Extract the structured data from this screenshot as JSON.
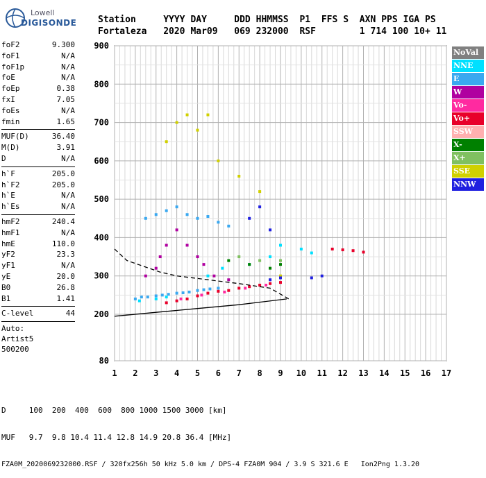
{
  "logo": {
    "line1": "Lowell",
    "line2": "DIGISONDE"
  },
  "header": {
    "labels": [
      "Station",
      "YYYY",
      "DAY",
      "DDD",
      "HHMMSS",
      "P1",
      "FFS",
      "S",
      "AXN",
      "PPS",
      "IGA",
      "PS"
    ],
    "values": [
      "Fortaleza",
      "2020",
      "Mar09",
      "069",
      "232000",
      "RSF",
      "1",
      "714",
      "100",
      "10+",
      "11"
    ]
  },
  "params": {
    "groups": [
      [
        {
          "k": "foF2",
          "v": "9.300"
        },
        {
          "k": "foF1",
          "v": "N/A"
        },
        {
          "k": "foF1p",
          "v": "N/A"
        },
        {
          "k": "foE",
          "v": "N/A"
        },
        {
          "k": "foEp",
          "v": "0.38"
        },
        {
          "k": "fxI",
          "v": "7.05"
        },
        {
          "k": "foEs",
          "v": "N/A"
        },
        {
          "k": "fmin",
          "v": "1.65"
        }
      ],
      [
        {
          "k": "MUF(D)",
          "v": "36.40"
        },
        {
          "k": "M(D)",
          "v": "3.91"
        },
        {
          "k": "D",
          "v": "N/A"
        }
      ],
      [
        {
          "k": "h`F",
          "v": "205.0"
        },
        {
          "k": "h`F2",
          "v": "205.0"
        },
        {
          "k": "h`E",
          "v": "N/A"
        },
        {
          "k": "h`Es",
          "v": "N/A"
        }
      ],
      [
        {
          "k": "hmF2",
          "v": "240.4"
        },
        {
          "k": "hmF1",
          "v": "N/A"
        },
        {
          "k": "hmE",
          "v": "110.0"
        },
        {
          "k": "yF2",
          "v": "23.3"
        },
        {
          "k": "yF1",
          "v": "N/A"
        },
        {
          "k": "yE",
          "v": "20.0"
        },
        {
          "k": "B0",
          "v": "26.8"
        },
        {
          "k": "B1",
          "v": "1.41"
        }
      ],
      [
        {
          "k": "C-level",
          "v": "44"
        }
      ]
    ],
    "auto": [
      "Auto:",
      "Artist5",
      "500200"
    ]
  },
  "legend": [
    {
      "label": "NoVal",
      "color": "#808080"
    },
    {
      "label": "NNE",
      "color": "#00e0ff"
    },
    {
      "label": "E",
      "color": "#3aa8f0"
    },
    {
      "label": "W",
      "color": "#b000a0"
    },
    {
      "label": "Vo-",
      "color": "#ff2aa0"
    },
    {
      "label": "Vo+",
      "color": "#e8002a"
    },
    {
      "label": "SSW",
      "color": "#ffb0b0"
    },
    {
      "label": "X-",
      "color": "#008000"
    },
    {
      "label": "X+",
      "color": "#80c060"
    },
    {
      "label": "SSE",
      "color": "#d0d000"
    },
    {
      "label": "NNW",
      "color": "#2020e0"
    }
  ],
  "footer": {
    "line1": "D     100  200  400  600  800 1000 1500 3000 [km]",
    "line2": "MUF   9.7  9.8 10.4 11.4 12.8 14.9 20.8 36.4 [MHz]",
    "line3": "FZA0M_2020069232000.RSF / 320fx256h 50 kHz 5.0 km / DPS-4 FZA0M 904 / 3.9 S 321.6 E   Ion2Png 1.3.20"
  },
  "chart_data": {
    "type": "scatter",
    "title": "",
    "xlabel": "",
    "ylabel": "",
    "xlim": [
      1,
      17
    ],
    "ylim": [
      80,
      900
    ],
    "x_ticks": [
      1,
      2,
      3,
      4,
      5,
      6,
      7,
      8,
      9,
      10,
      11,
      12,
      13,
      14,
      15,
      16,
      17
    ],
    "y_ticks": [
      80,
      200,
      300,
      400,
      500,
      600,
      700,
      800,
      900
    ],
    "grid": true,
    "legend_position": "right",
    "series": [
      {
        "name": "E",
        "color": "#3aa8f0",
        "points": [
          [
            2.0,
            240
          ],
          [
            2.3,
            245
          ],
          [
            2.6,
            245
          ],
          [
            3.0,
            248
          ],
          [
            3.3,
            250
          ],
          [
            3.6,
            252
          ],
          [
            4.0,
            255
          ],
          [
            4.3,
            256
          ],
          [
            4.6,
            258
          ],
          [
            5.0,
            262
          ],
          [
            5.3,
            264
          ],
          [
            5.6,
            266
          ],
          [
            6.0,
            268
          ],
          [
            2.5,
            450
          ],
          [
            3.0,
            460
          ],
          [
            3.5,
            470
          ],
          [
            4.0,
            480
          ],
          [
            4.5,
            460
          ],
          [
            5.0,
            450
          ],
          [
            5.5,
            455
          ],
          [
            6.0,
            440
          ],
          [
            6.5,
            430
          ]
        ]
      },
      {
        "name": "NNE",
        "color": "#00e0ff",
        "points": [
          [
            2.2,
            235
          ],
          [
            3.0,
            240
          ],
          [
            3.5,
            245
          ],
          [
            5.5,
            300
          ],
          [
            6.2,
            320
          ],
          [
            7.5,
            330
          ],
          [
            8.5,
            350
          ],
          [
            9.0,
            380
          ],
          [
            10.0,
            370
          ],
          [
            10.5,
            360
          ]
        ]
      },
      {
        "name": "W",
        "color": "#b000a0",
        "points": [
          [
            2.5,
            300
          ],
          [
            3.0,
            320
          ],
          [
            3.2,
            350
          ],
          [
            3.5,
            380
          ],
          [
            4.0,
            420
          ],
          [
            4.5,
            380
          ],
          [
            5.0,
            350
          ],
          [
            5.3,
            330
          ],
          [
            5.8,
            300
          ],
          [
            6.5,
            290
          ]
        ]
      },
      {
        "name": "Vo+",
        "color": "#e8002a",
        "points": [
          [
            3.5,
            230
          ],
          [
            4.0,
            235
          ],
          [
            4.5,
            240
          ],
          [
            5.0,
            248
          ],
          [
            5.5,
            255
          ],
          [
            6.0,
            260
          ],
          [
            6.5,
            262
          ],
          [
            7.0,
            268
          ],
          [
            7.5,
            272
          ],
          [
            8.0,
            276
          ],
          [
            8.5,
            280
          ],
          [
            9.0,
            283
          ],
          [
            11.5,
            370
          ],
          [
            12.0,
            368
          ],
          [
            12.5,
            366
          ],
          [
            13.0,
            362
          ]
        ]
      },
      {
        "name": "Vo-",
        "color": "#ff2aa0",
        "points": [
          [
            4.2,
            240
          ],
          [
            5.2,
            250
          ],
          [
            6.3,
            258
          ],
          [
            7.3,
            268
          ],
          [
            8.3,
            276
          ]
        ]
      },
      {
        "name": "SSE",
        "color": "#d0d000",
        "points": [
          [
            3.5,
            650
          ],
          [
            4.0,
            700
          ],
          [
            4.5,
            720
          ],
          [
            5.0,
            680
          ],
          [
            5.5,
            720
          ],
          [
            6.0,
            600
          ],
          [
            7.0,
            560
          ],
          [
            8.0,
            520
          ],
          [
            9.0,
            300
          ]
        ]
      },
      {
        "name": "NNW",
        "color": "#2020e0",
        "points": [
          [
            8.5,
            290
          ],
          [
            9.0,
            295
          ],
          [
            10.5,
            295
          ],
          [
            11.0,
            300
          ],
          [
            7.5,
            450
          ],
          [
            8.0,
            480
          ],
          [
            8.5,
            420
          ]
        ]
      },
      {
        "name": "X-",
        "color": "#008000",
        "points": [
          [
            6.5,
            340
          ],
          [
            7.5,
            330
          ],
          [
            8.5,
            320
          ],
          [
            9.0,
            330
          ]
        ]
      },
      {
        "name": "X+",
        "color": "#80c060",
        "points": [
          [
            7.0,
            350
          ],
          [
            8.0,
            340
          ],
          [
            9.0,
            340
          ]
        ]
      }
    ],
    "lines": [
      {
        "name": "profile",
        "style": "solid",
        "points": [
          [
            1.0,
            195
          ],
          [
            3.0,
            205
          ],
          [
            5.0,
            215
          ],
          [
            7.0,
            225
          ],
          [
            9.3,
            240
          ]
        ]
      },
      {
        "name": "extrapolation",
        "style": "dashed",
        "points": [
          [
            1.0,
            370
          ],
          [
            1.6,
            340
          ],
          [
            2.4,
            325
          ],
          [
            3.2,
            310
          ],
          [
            4.0,
            300
          ],
          [
            5.5,
            290
          ],
          [
            7.0,
            280
          ],
          [
            8.5,
            268
          ],
          [
            9.4,
            240
          ]
        ]
      }
    ]
  }
}
